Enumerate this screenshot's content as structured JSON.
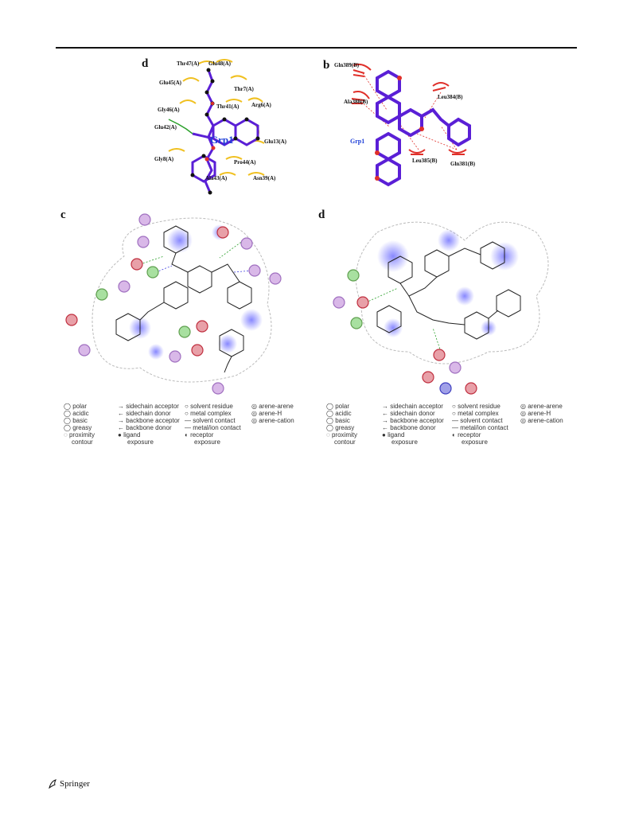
{
  "panels": {
    "top_left": {
      "letter": "d",
      "ligand": "Grp1",
      "residues": [
        "Thr47(A)",
        "Glu48(A)",
        "Glu45(A)",
        "Thr7(A)",
        "Gly46(A)",
        "Thr41(A)",
        "Arg6(A)",
        "Glu42(A)",
        "Glu13(A)",
        "Pro44(A)",
        "Gly8(A)",
        "Ala43(A)",
        "Asn39(A)"
      ]
    },
    "top_right": {
      "letter": "b",
      "ligand": "Grp1",
      "residues": [
        "Gln389(B)",
        "Leu384(B)",
        "Ala388(B)",
        "Leu385(B)",
        "Gln381(B)"
      ]
    },
    "bottom_left": {
      "letter": "c"
    },
    "bottom_right": {
      "letter": "d"
    }
  },
  "legend": {
    "col1": [
      "polar",
      "acidic",
      "basic",
      "greasy",
      "proximity",
      "contour"
    ],
    "col2": [
      "sidechain acceptor",
      "sidechain donor",
      "backbone acceptor",
      "backbone donor",
      "ligand",
      "exposure"
    ],
    "col3": [
      "solvent residue",
      "metal complex",
      "solvent contact",
      "metal/ion contact",
      "receptor",
      "exposure"
    ],
    "col4": [
      "arene-arene",
      "arene-H",
      "arene-cation"
    ]
  },
  "colors": {
    "polar": "#d9b8e8",
    "acidic": "#e8a0a8",
    "basic": "#a0a0e8",
    "greasy": "#a8e0a0",
    "ligand_bond": "#5a1fd6",
    "contact_red": "#e0302a",
    "contact_yellow": "#f0c020"
  },
  "footer": {
    "publisher": "Springer"
  }
}
